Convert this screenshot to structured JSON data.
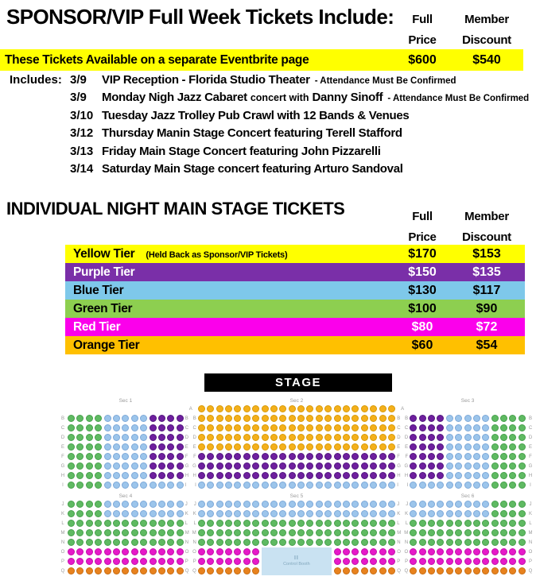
{
  "header": {
    "title": "SPONSOR/VIP Full Week Tickets Include:",
    "col_full_1": "Full",
    "col_full_2": "Price",
    "col_member_1": "Member",
    "col_member_2": "Discount"
  },
  "sponsor": {
    "banner_text": "These Tickets Available on a separate Eventbrite page",
    "full_price": "$600",
    "member_discount": "$540",
    "includes_label": "Includes:",
    "items": [
      {
        "date": "3/9",
        "main": "VIP Reception - Florida Studio Theater",
        "note": "-  Attendance Must Be Confirmed"
      },
      {
        "date": "3/9",
        "main": "Monday Nigh Jazz Cabaret",
        "mid": "concert with",
        "main2": "Danny Sinoff",
        "note": "- Attendance Must Be Confirmed"
      },
      {
        "date": "3/10",
        "main": "Tuesday Jazz Trolley Pub Crawl with 12 Bands & Venues"
      },
      {
        "date": "3/12",
        "main": "Thursday Manin Stage Concert featuring Terell Stafford"
      },
      {
        "date": "3/13",
        "main": "Friday Main Stage Concert featuring John Pizzarelli"
      },
      {
        "date": "3/14",
        "main": "Saturday Main Stage concert featuring Arturo Sandoval"
      }
    ]
  },
  "individual": {
    "title": "INDIVIDUAL NIGHT MAIN STAGE TICKETS",
    "col_full_1": "Full",
    "col_full_2": "Price",
    "col_member_1": "Member",
    "col_member_2": "Discount",
    "tiers": [
      {
        "name": "Yellow Tier",
        "note": "(Held Back as Sponsor/VIP Tickets)",
        "full": "$170",
        "member": "$153",
        "bg": "#FFFF00",
        "fg": "#000000"
      },
      {
        "name": "Purple Tier",
        "note": "",
        "full": "$150",
        "member": "$135",
        "bg": "#7A2FA8",
        "fg": "#FFFFFF"
      },
      {
        "name": "Blue Tier",
        "note": "",
        "full": "$130",
        "member": "$117",
        "bg": "#7EC8EA",
        "fg": "#000000"
      },
      {
        "name": "Green Tier",
        "note": "",
        "full": "$100",
        "member": "$90",
        "bg": "#8DCF50",
        "fg": "#000000"
      },
      {
        "name": "Red Tier",
        "note": "",
        "full": "$80",
        "member": "$72",
        "bg": "#FB00EB",
        "fg": "#FFFFFF"
      },
      {
        "name": "Orange Tier",
        "note": "",
        "full": "$60",
        "member": "$54",
        "bg": "#FFC000",
        "fg": "#000000"
      }
    ]
  },
  "stage_label": "STAGE",
  "seatmap": {
    "section_labels_top": [
      "Sec 1",
      "Sec 2",
      "Sec 3"
    ],
    "section_labels_bottom": [
      "Sec 4",
      "Sec 5",
      "Sec 6"
    ],
    "booth": {
      "icon": "II",
      "label": "Control Booth"
    },
    "seat_colors": {
      "Y": [
        "#F4B01B",
        "#D89A06"
      ],
      "P": [
        "#6E1F9E",
        "#531680"
      ],
      "B": [
        "#9CC5EB",
        "#7EA9D9"
      ],
      "G": [
        "#5FBA62",
        "#47A14C"
      ],
      "M": [
        "#E619C9",
        "#C410AB"
      ],
      "O": [
        "#E8821E",
        "#C96C10"
      ]
    },
    "patterns": {
      "lb": "GGGGBBBBBPPPP",
      "li": "GGGGBBBBBBBBB",
      "rb": "PPPPBBBBBGGGG",
      "ri": "BBBBBBBBBGGGG",
      "g13": "GGGGGGGGGGGGG",
      "m13": "MMMMMMMMMMMMM",
      "o13": "OOOOOOOOOOOOO",
      "y22": "YYYYYYYYYYYYYYYYYYYYYY",
      "p22": "PPPPPPPPPPPPPPPPPPPPPP",
      "b22": "BBBBBBBBBBBBBBBBBBBBBB",
      "g22": "GGGGGGGGGGGGGGGGGGGGGG",
      "mc": "MMMMMMM--------MMMMMMM",
      "oc": "OOOOOOO--------OOOOOOO"
    },
    "top_rows": [
      {
        "letter": "A",
        "l": "",
        "c": "y22",
        "r": ""
      },
      {
        "letter": "B",
        "l": "lb",
        "c": "y22",
        "r": "rb"
      },
      {
        "letter": "C",
        "l": "lb",
        "c": "y22",
        "r": "rb"
      },
      {
        "letter": "D",
        "l": "lb",
        "c": "y22",
        "r": "rb"
      },
      {
        "letter": "E",
        "l": "lb",
        "c": "y22",
        "r": "rb"
      },
      {
        "letter": "F",
        "l": "lb",
        "c": "p22",
        "r": "rb"
      },
      {
        "letter": "G",
        "l": "lb",
        "c": "p22",
        "r": "rb"
      },
      {
        "letter": "H",
        "l": "lb",
        "c": "p22",
        "r": "rb"
      },
      {
        "letter": "I",
        "l": "li",
        "c": "b22",
        "r": "ri"
      }
    ],
    "bottom_rows": [
      {
        "letter": "J",
        "l": "li",
        "c": "b22",
        "r": "ri"
      },
      {
        "letter": "K",
        "l": "li",
        "c": "b22",
        "r": "ri"
      },
      {
        "letter": "L",
        "l": "g13",
        "c": "g22",
        "r": "g13"
      },
      {
        "letter": "M",
        "l": "g13",
        "c": "g22",
        "r": "g13"
      },
      {
        "letter": "N",
        "l": "g13",
        "c": "g22",
        "r": "g13"
      },
      {
        "letter": "O",
        "l": "m13",
        "c": "mc",
        "r": "m13"
      },
      {
        "letter": "P",
        "l": "m13",
        "c": "mc",
        "r": "m13"
      },
      {
        "letter": "Q",
        "l": "o13",
        "c": "oc",
        "r": "o13"
      }
    ]
  }
}
